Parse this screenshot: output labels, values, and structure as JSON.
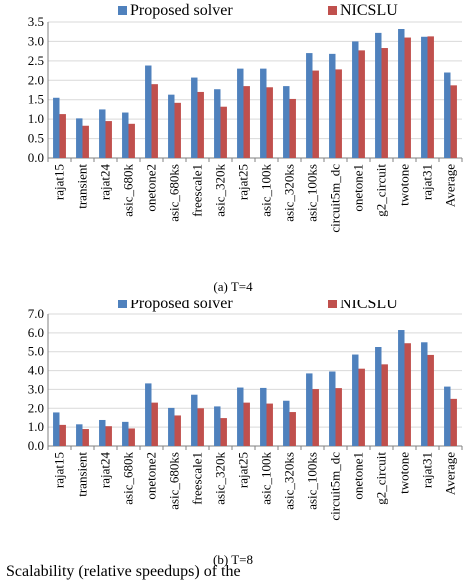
{
  "legend": {
    "proposed_label": "Proposed solver",
    "nicslu_label": "NICSLU"
  },
  "colors": {
    "proposed": "#4f81bd",
    "nicslu": "#c0504d",
    "axis": "#808080",
    "grid": "#d9d9d9"
  },
  "captions": {
    "a": "(a) T=4",
    "b": "(b) T=8",
    "figure_fragment": "Scalability (relative speedups) of the"
  },
  "chart_data": [
    {
      "type": "bar",
      "categories": [
        "rajat15",
        "transient",
        "rajat24",
        "asic_680k",
        "onetone2",
        "asic_680ks",
        "freescale1",
        "asic_320k",
        "rajat25",
        "asic_100k",
        "asic_320ks",
        "asic_100ks",
        "circuit5m_dc",
        "onetone1",
        "g2_circuit",
        "twotone",
        "rajat31",
        "Average"
      ],
      "series": [
        {
          "name": "Proposed solver",
          "values": [
            1.55,
            1.02,
            1.25,
            1.17,
            2.38,
            1.63,
            2.07,
            1.77,
            2.3,
            2.3,
            1.85,
            2.7,
            2.68,
            3.0,
            3.22,
            3.32,
            3.12,
            2.2
          ]
        },
        {
          "name": "NICSLU",
          "values": [
            1.13,
            0.83,
            0.95,
            0.88,
            1.9,
            1.42,
            1.7,
            1.32,
            1.85,
            1.82,
            1.52,
            2.25,
            2.28,
            2.77,
            2.83,
            3.1,
            3.13,
            1.87
          ]
        }
      ],
      "yticks": [
        "0.0",
        "0.5",
        "1.0",
        "1.5",
        "2.0",
        "2.5",
        "3.0",
        "3.5"
      ],
      "ylim": [
        0,
        3.5
      ],
      "grid": true,
      "legend_position": "top"
    },
    {
      "type": "bar",
      "categories": [
        "rajat15",
        "transient",
        "rajat24",
        "asic_680k",
        "onetone2",
        "asic_680ks",
        "freescale1",
        "asic_320k",
        "rajat25",
        "asic_100k",
        "asic_320ks",
        "asic_100ks",
        "circuit5m_dc",
        "onetone1",
        "g2_circuit",
        "twotone",
        "rajat31",
        "Average"
      ],
      "series": [
        {
          "name": "Proposed solver",
          "values": [
            1.78,
            1.15,
            1.38,
            1.28,
            3.32,
            2.02,
            2.72,
            2.1,
            3.1,
            3.08,
            2.4,
            3.85,
            3.95,
            4.85,
            5.25,
            6.15,
            5.5,
            3.15
          ]
        },
        {
          "name": "NICSLU",
          "values": [
            1.12,
            0.9,
            1.05,
            0.93,
            2.3,
            1.62,
            2.0,
            1.48,
            2.3,
            2.25,
            1.8,
            3.02,
            3.07,
            4.1,
            4.33,
            5.45,
            4.83,
            2.5
          ]
        }
      ],
      "yticks": [
        "0.0",
        "1.0",
        "2.0",
        "3.0",
        "4.0",
        "5.0",
        "6.0",
        "7.0"
      ],
      "ylim": [
        0,
        7
      ],
      "grid": true,
      "legend_position": "top"
    }
  ]
}
